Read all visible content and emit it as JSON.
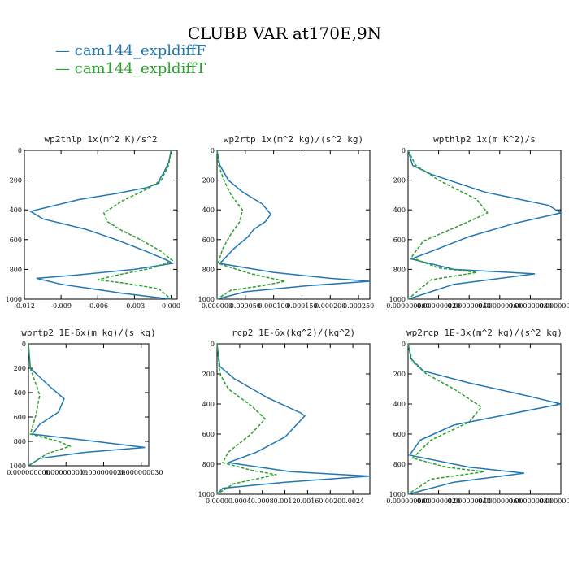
{
  "figure_title": "CLUBB VAR at170E,9N",
  "legend": [
    {
      "label": "cam144_expldiffF",
      "color": "#1f77b4",
      "dash": "solid"
    },
    {
      "label": "cam144_expldiffT",
      "color": "#2ca02c",
      "dash": "dashed"
    }
  ],
  "chart_data": [
    {
      "type": "line",
      "title": "wp2thlp  1x(m^2 K)/s^2",
      "xlim": [
        -0.012,
        0.0005
      ],
      "ylim": [
        0,
        1000
      ],
      "y_inverted": true,
      "xticks": [
        "-0.012",
        "-0.009",
        "-0.006",
        "-0.003",
        "0.000"
      ],
      "xtick_values": [
        -0.012,
        -0.009,
        -0.006,
        -0.003,
        0.0
      ],
      "yticks": [
        "0",
        "200",
        "400",
        "600",
        "800",
        "1000"
      ],
      "series": [
        {
          "name": "cam144_expldiffF",
          "x": [
            0,
            -0.0002,
            -0.0006,
            -0.0009,
            -0.001,
            -0.002,
            -0.0045,
            -0.0075,
            -0.0115,
            -0.0105,
            -0.007,
            -0.0045,
            -0.002,
            -0.0003,
            0.0001,
            -0.003,
            -0.008,
            -0.011,
            -0.009,
            -0.004,
            0.0
          ],
          "y": [
            0,
            80,
            150,
            190,
            220,
            250,
            290,
            330,
            410,
            460,
            530,
            600,
            680,
            740,
            760,
            800,
            840,
            860,
            900,
            960,
            1000
          ]
        },
        {
          "name": "cam144_expldiffT",
          "x": [
            0,
            -0.0002,
            -0.0008,
            -0.002,
            -0.004,
            -0.0055,
            -0.0052,
            -0.004,
            -0.0025,
            -0.0008,
            0.0001,
            -0.0015,
            -0.0045,
            -0.006,
            -0.004,
            -0.001,
            0.0
          ],
          "y": [
            0,
            100,
            200,
            260,
            340,
            420,
            480,
            540,
            600,
            680,
            740,
            790,
            840,
            870,
            890,
            930,
            1000
          ]
        }
      ]
    },
    {
      "type": "line",
      "title": "wp2rtp  1x(m^2 kg)/(s^2 kg)",
      "xlim": [
        0,
        0.00027
      ],
      "ylim": [
        0,
        1000
      ],
      "y_inverted": true,
      "xticks": [
        "0.000000",
        "0.000050",
        "0.000100",
        "0.000150",
        "0.000200",
        "0.000250"
      ],
      "xtick_values": [
        0,
        5e-05,
        0.0001,
        0.00015,
        0.0002,
        0.00025
      ],
      "yticks": [
        "0",
        "200",
        "400",
        "600",
        "800",
        "1000"
      ],
      "series": [
        {
          "name": "cam144_expldiffF",
          "x": [
            0,
            5e-06,
            2e-05,
            4.5e-05,
            8e-05,
            9.5e-05,
            8.5e-05,
            6.5e-05,
            5.5e-05,
            3e-05,
            5e-06,
            0.0001,
            0.0002,
            0.00027,
            0.00016,
            5e-05,
            0.0
          ],
          "y": [
            0,
            100,
            200,
            280,
            360,
            430,
            480,
            530,
            580,
            660,
            760,
            820,
            860,
            880,
            910,
            950,
            1000
          ]
        },
        {
          "name": "cam144_expldiffT",
          "x": [
            0,
            3e-06,
            1.2e-05,
            2.5e-05,
            4.5e-05,
            4e-05,
            2.5e-05,
            1e-05,
            2e-06,
            6e-05,
            0.00012,
            8e-05,
            2.5e-05,
            0.0
          ],
          "y": [
            0,
            100,
            200,
            300,
            400,
            480,
            560,
            660,
            760,
            830,
            880,
            910,
            940,
            1000
          ]
        }
      ]
    },
    {
      "type": "line",
      "title": "wpthlp2  1x(m K^2)/s",
      "xlim": [
        0,
        1e-07
      ],
      "ylim": [
        0,
        1000
      ],
      "y_inverted": true,
      "xticks": [
        "0.000000000",
        "0.000000020",
        "0.000000040",
        "0.000000060",
        "0.000000080",
        "0.000000100"
      ],
      "xtick_values": [
        0,
        2e-08,
        4e-08,
        6e-08,
        8e-08,
        1e-07
      ],
      "yticks": [
        "0",
        "200",
        "400",
        "600",
        "800",
        "1000"
      ],
      "series": [
        {
          "name": "cam144_expldiffF",
          "x": [
            0,
            3e-09,
            1.5e-08,
            5e-08,
            9.2e-08,
            1e-07,
            7e-08,
            4e-08,
            1.5e-08,
            2e-09,
            3e-08,
            8.3e-08,
            3e-08,
            0.0
          ],
          "y": [
            0,
            100,
            160,
            280,
            370,
            420,
            490,
            580,
            680,
            730,
            800,
            830,
            900,
            1000
          ]
        },
        {
          "name": "cam144_expldiffT",
          "x": [
            0,
            5e-09,
            2e-08,
            4.5e-08,
            5.2e-08,
            3.5e-08,
            1e-08,
            2e-09,
            2e-08,
            4.5e-08,
            1.5e-08,
            0.0
          ],
          "y": [
            0,
            100,
            200,
            330,
            420,
            500,
            610,
            720,
            790,
            820,
            870,
            1000
          ]
        }
      ]
    },
    {
      "type": "line",
      "title": "wprtp2  1E-6x(m kg)/(s kg)",
      "xlim": [
        0,
        3.2e-08
      ],
      "ylim": [
        0,
        1000
      ],
      "y_inverted": true,
      "xticks": [
        "0.000000000",
        "0.000000010",
        "0.000000020",
        "0.000000030"
      ],
      "xtick_values": [
        0,
        1e-08,
        2e-08,
        3e-08
      ],
      "yticks": [
        "0",
        "200",
        "400",
        "600",
        "800",
        "1000"
      ],
      "series": [
        {
          "name": "cam144_expldiffF",
          "x": [
            0,
            5e-10,
            6e-09,
            9.5e-09,
            8e-09,
            3e-09,
            1e-09,
            1.5e-08,
            3.1e-08,
            1.5e-08,
            3e-09,
            0.0
          ],
          "y": [
            0,
            200,
            360,
            450,
            560,
            660,
            740,
            790,
            850,
            890,
            940,
            1000
          ]
        },
        {
          "name": "cam144_expldiffT",
          "x": [
            0,
            5e-10,
            3e-09,
            2e-09,
            5e-10,
            8e-09,
            1.1e-08,
            5e-09,
            0.0
          ],
          "y": [
            0,
            200,
            420,
            580,
            740,
            800,
            840,
            900,
            1000
          ]
        }
      ]
    },
    {
      "type": "line",
      "title": "rcp2  1E-6x(kg^2)/(kg^2)",
      "xlim": [
        0,
        0.0027
      ],
      "ylim": [
        0,
        1000
      ],
      "y_inverted": true,
      "xticks": [
        "0.0000",
        "0.0004",
        "0.0008",
        "0.0012",
        "0.0016",
        "0.0020",
        "0.0024"
      ],
      "xtick_values": [
        0,
        0.0004,
        0.0008,
        0.0012,
        0.0016,
        0.002,
        0.0024
      ],
      "yticks": [
        "0",
        "200",
        "400",
        "600",
        "800",
        "1000"
      ],
      "series": [
        {
          "name": "cam144_expldiffF",
          "x": [
            0,
            5e-05,
            0.0003,
            0.0009,
            0.00148,
            0.00155,
            0.0012,
            0.0007,
            0.0002,
            0.0013,
            0.0027,
            0.0012,
            0.0001,
            0.0
          ],
          "y": [
            0,
            150,
            230,
            360,
            460,
            480,
            620,
            720,
            790,
            850,
            880,
            920,
            960,
            1000
          ]
        },
        {
          "name": "cam144_expldiffT",
          "x": [
            0,
            5e-05,
            0.0002,
            0.0006,
            0.00085,
            0.0006,
            0.0002,
            0.0001,
            0.0006,
            0.00105,
            0.0003,
            0.0
          ],
          "y": [
            0,
            200,
            300,
            410,
            500,
            600,
            720,
            790,
            840,
            870,
            930,
            1000
          ]
        }
      ]
    },
    {
      "type": "line",
      "title": "wp2rcp  1E-3x(m^2 kg)/(s^2 kg)",
      "xlim": [
        0,
        1e-07
      ],
      "ylim": [
        0,
        1000
      ],
      "y_inverted": true,
      "xticks": [
        "0.000000000",
        "0.000000020",
        "0.000000040",
        "0.000000060",
        "0.000000080",
        "0.000000100"
      ],
      "xtick_values": [
        0,
        2e-08,
        4e-08,
        6e-08,
        8e-08,
        1e-07
      ],
      "yticks": [
        "0",
        "200",
        "400",
        "600",
        "800",
        "1000"
      ],
      "series": [
        {
          "name": "cam144_expldiffF",
          "x": [
            0,
            2e-09,
            1e-08,
            4e-08,
            8e-08,
            1e-07,
            7e-08,
            3e-08,
            8e-09,
            1e-09,
            4e-08,
            7.6e-08,
            3e-08,
            0.0
          ],
          "y": [
            0,
            100,
            180,
            260,
            350,
            400,
            460,
            540,
            640,
            740,
            820,
            860,
            920,
            1000
          ]
        },
        {
          "name": "cam144_expldiffT",
          "x": [
            0,
            3e-09,
            1.2e-08,
            3e-08,
            4.8e-08,
            4e-08,
            1.5e-08,
            3e-09,
            2.5e-08,
            5e-08,
            1.5e-08,
            0.0
          ],
          "y": [
            0,
            120,
            200,
            300,
            420,
            520,
            640,
            760,
            820,
            850,
            900,
            1000
          ]
        }
      ]
    }
  ]
}
